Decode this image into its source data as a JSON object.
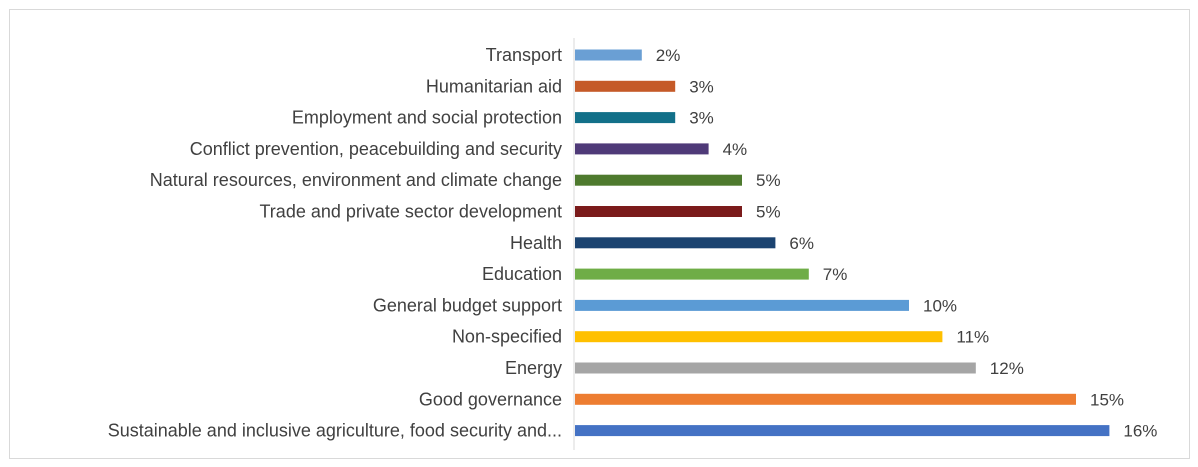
{
  "chart_data": {
    "type": "bar",
    "orientation": "horizontal",
    "title": "",
    "xlabel": "",
    "ylabel": "",
    "xlim": [
      0,
      16
    ],
    "grid": false,
    "legend": "none",
    "categories": [
      "Transport",
      "Humanitarian aid",
      "Employment and social protection",
      "Conflict prevention, peacebuilding and security",
      "Natural resources, environment and climate change",
      "Trade and private sector development",
      "Health",
      "Education",
      "General budget support",
      "Non-specified",
      "Energy",
      "Good governance",
      "Sustainable and inclusive agriculture, food security and..."
    ],
    "values": [
      2,
      3,
      3,
      4,
      5,
      5,
      6,
      7,
      10,
      11,
      12,
      15,
      16
    ],
    "value_labels": [
      "2%",
      "3%",
      "3%",
      "4%",
      "5%",
      "5%",
      "6%",
      "7%",
      "10%",
      "11%",
      "12%",
      "15%",
      "16%"
    ],
    "colors": [
      "#6a9fd4",
      "#c55a28",
      "#127089",
      "#4f3a78",
      "#4e7a2e",
      "#7b1b1b",
      "#1b4370",
      "#6fad47",
      "#5b9bd5",
      "#ffc000",
      "#a5a5a5",
      "#ed7d31",
      "#4472c4"
    ]
  }
}
